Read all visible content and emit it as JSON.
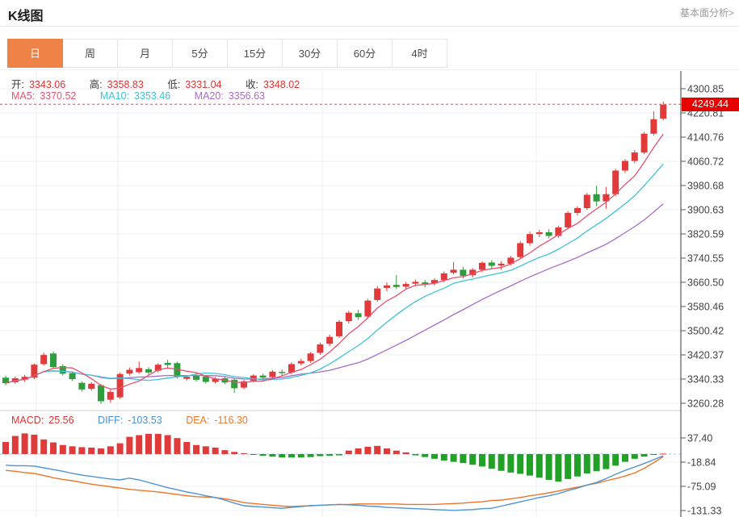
{
  "header": {
    "title": "K线图",
    "analysis_link": "基本面分析>"
  },
  "tabs": [
    {
      "id": "day",
      "label": "日",
      "active": true
    },
    {
      "id": "week",
      "label": "周",
      "active": false
    },
    {
      "id": "month",
      "label": "月",
      "active": false
    },
    {
      "id": "5min",
      "label": "5分",
      "active": false
    },
    {
      "id": "15min",
      "label": "15分",
      "active": false
    },
    {
      "id": "30min",
      "label": "30分",
      "active": false
    },
    {
      "id": "60min",
      "label": "60分",
      "active": false
    },
    {
      "id": "4hour",
      "label": "4时",
      "active": false
    }
  ],
  "readout": {
    "open_label": "开:",
    "open": "3343.06",
    "high_label": "高:",
    "high": "3358.83",
    "low_label": "低:",
    "low": "3331.04",
    "close_label": "收:",
    "close": "3348.02",
    "ma5_label": "MA5:",
    "ma5": "3370.52",
    "ma10_label": "MA10:",
    "ma10": "3353.46",
    "ma20_label": "MA20:",
    "ma20": "3356.63"
  },
  "macd_readout": {
    "macd_label": "MACD:",
    "macd": "25.56",
    "diff_label": "DIFF:",
    "diff": "-103.53",
    "dea_label": "DEA:",
    "dea": "-116.30"
  },
  "price_badge": {
    "value": "4249.44"
  },
  "colors": {
    "up": "#e03a3a",
    "down": "#2e9e3c",
    "ma5": "#e8506e",
    "ma10": "#3fc3d8",
    "ma20": "#a96bc8",
    "diff_line": "#4f94d4",
    "dea_line": "#ee7528",
    "hist_up": "#e03a3a",
    "hist_down": "#21a126",
    "last_price_dash": "#e34d4d",
    "zero_dash": "#9fd6da",
    "grid": "#eef1f5",
    "vgrid": "#e9edf2",
    "axis": "#58595b",
    "axis_text": "#404244",
    "badge_bg": "#e60000",
    "active_tab": "#ef8246",
    "panel_divider": "#cfcfcf"
  },
  "chart_data": {
    "type": "candlestick",
    "title": "K线图 (daily K-line with MA5/MA10/MA20 overlays and MACD sub-chart)",
    "y_axis_labels": [
      "4300.85",
      "4220.81",
      "4140.76",
      "4060.72",
      "3980.68",
      "3900.63",
      "3820.59",
      "3740.55",
      "3660.50",
      "3580.46",
      "3500.42",
      "3420.37",
      "3340.33",
      "3260.28"
    ],
    "y_range": [
      3260.28,
      4300.85
    ],
    "last_price": 4249.44,
    "overlays": [
      "MA5",
      "MA10",
      "MA20"
    ],
    "legend_position": "top-left",
    "grid": true,
    "candles": [
      [
        3345,
        3352,
        3320,
        3327
      ],
      [
        3330,
        3349,
        3325,
        3343
      ],
      [
        3338,
        3354,
        3332,
        3348
      ],
      [
        3345,
        3392,
        3340,
        3388
      ],
      [
        3390,
        3428,
        3385,
        3420
      ],
      [
        3425,
        3432,
        3375,
        3380
      ],
      [
        3383,
        3390,
        3352,
        3358
      ],
      [
        3360,
        3366,
        3334,
        3340
      ],
      [
        3328,
        3333,
        3299,
        3306
      ],
      [
        3308,
        3330,
        3302,
        3325
      ],
      [
        3320,
        3324,
        3259,
        3267
      ],
      [
        3272,
        3305,
        3262,
        3298
      ],
      [
        3280,
        3362,
        3275,
        3357
      ],
      [
        3359,
        3379,
        3352,
        3371
      ],
      [
        3363,
        3398,
        3358,
        3377
      ],
      [
        3373,
        3380,
        3355,
        3362
      ],
      [
        3368,
        3393,
        3362,
        3388
      ],
      [
        3394,
        3404,
        3377,
        3387
      ],
      [
        3393,
        3398,
        3342,
        3348
      ],
      [
        3341,
        3353,
        3335,
        3348
      ],
      [
        3352,
        3357,
        3332,
        3338
      ],
      [
        3349,
        3354,
        3325,
        3331
      ],
      [
        3331,
        3347,
        3326,
        3341
      ],
      [
        3343,
        3349,
        3323,
        3329
      ],
      [
        3338,
        3342,
        3295,
        3310
      ],
      [
        3312,
        3338,
        3306,
        3333
      ],
      [
        3335,
        3357,
        3329,
        3352
      ],
      [
        3352,
        3358,
        3338,
        3345
      ],
      [
        3347,
        3370,
        3342,
        3365
      ],
      [
        3364,
        3372,
        3350,
        3360
      ],
      [
        3362,
        3396,
        3356,
        3390
      ],
      [
        3392,
        3408,
        3386,
        3400
      ],
      [
        3400,
        3430,
        3394,
        3425
      ],
      [
        3427,
        3461,
        3421,
        3455
      ],
      [
        3457,
        3487,
        3450,
        3480
      ],
      [
        3482,
        3536,
        3476,
        3530
      ],
      [
        3532,
        3566,
        3524,
        3560
      ],
      [
        3558,
        3570,
        3536,
        3545
      ],
      [
        3547,
        3606,
        3540,
        3600
      ],
      [
        3602,
        3648,
        3596,
        3640
      ],
      [
        3642,
        3660,
        3630,
        3650
      ],
      [
        3652,
        3684,
        3638,
        3645
      ],
      [
        3646,
        3662,
        3638,
        3655
      ],
      [
        3656,
        3670,
        3648,
        3662
      ],
      [
        3660,
        3668,
        3644,
        3655
      ],
      [
        3657,
        3674,
        3650,
        3668
      ],
      [
        3668,
        3696,
        3660,
        3690
      ],
      [
        3692,
        3728,
        3686,
        3702
      ],
      [
        3702,
        3712,
        3674,
        3682
      ],
      [
        3684,
        3708,
        3676,
        3702
      ],
      [
        3702,
        3730,
        3694,
        3725
      ],
      [
        3726,
        3734,
        3706,
        3715
      ],
      [
        3716,
        3730,
        3702,
        3722
      ],
      [
        3722,
        3748,
        3716,
        3742
      ],
      [
        3744,
        3796,
        3738,
        3790
      ],
      [
        3790,
        3828,
        3782,
        3820
      ],
      [
        3820,
        3834,
        3810,
        3826
      ],
      [
        3826,
        3836,
        3806,
        3814
      ],
      [
        3814,
        3848,
        3808,
        3842
      ],
      [
        3842,
        3896,
        3836,
        3890
      ],
      [
        3890,
        3912,
        3882,
        3906
      ],
      [
        3906,
        3956,
        3900,
        3950
      ],
      [
        3952,
        3980,
        3912,
        3928
      ],
      [
        3928,
        3976,
        3904,
        3952
      ],
      [
        3952,
        4036,
        3946,
        4030
      ],
      [
        4030,
        4068,
        4022,
        4062
      ],
      [
        4062,
        4098,
        4054,
        4090
      ],
      [
        4090,
        4158,
        4084,
        4152
      ],
      [
        4152,
        4226,
        4146,
        4200
      ],
      [
        4202,
        4258,
        4196,
        4248
      ]
    ],
    "macd": {
      "y_axis_labels": [
        "37.40",
        "-18.84",
        "-75.09",
        "-131.33"
      ],
      "y_range": [
        -131.33,
        37.4
      ],
      "histogram": [
        28,
        42,
        48,
        45,
        34,
        27,
        21,
        18,
        16,
        15,
        13,
        18,
        25,
        40,
        44,
        47,
        47,
        44,
        37,
        28,
        21,
        18,
        15,
        9,
        5,
        2,
        -2,
        -4,
        -6,
        -8,
        -8,
        -8,
        -7,
        -5,
        -4,
        -3,
        8,
        13,
        17,
        19,
        13,
        8,
        4,
        -3,
        -7,
        -11,
        -15,
        -18,
        -21,
        -25,
        -29,
        -34,
        -39,
        -43,
        -46,
        -50,
        -55,
        -60,
        -64,
        -58,
        -52,
        -45,
        -40,
        -35,
        -27,
        -18,
        -11,
        -6,
        -2,
        1
      ],
      "diff": [
        -26,
        -27,
        -27,
        -28,
        -32,
        -36,
        -40,
        -45,
        -49,
        -52,
        -55,
        -58,
        -60,
        -56,
        -60,
        -66,
        -72,
        -78,
        -83,
        -88,
        -92,
        -97,
        -101,
        -107,
        -114,
        -120,
        -122,
        -123,
        -125,
        -126,
        -124,
        -122,
        -120,
        -119,
        -118,
        -117,
        -118,
        -119,
        -121,
        -122,
        -124,
        -125,
        -126,
        -127,
        -128,
        -129,
        -130,
        -131,
        -130,
        -129,
        -127,
        -126,
        -121,
        -116,
        -111,
        -106,
        -101,
        -97,
        -92,
        -85,
        -79,
        -72,
        -66,
        -57,
        -47,
        -38,
        -30,
        -22,
        -13,
        -4
      ],
      "dea": [
        -38,
        -40,
        -43,
        -45,
        -50,
        -55,
        -59,
        -62,
        -66,
        -70,
        -73,
        -76,
        -79,
        -82,
        -84,
        -86,
        -88,
        -91,
        -94,
        -97,
        -99,
        -100,
        -101,
        -104,
        -108,
        -113,
        -115,
        -117,
        -119,
        -121,
        -122,
        -121,
        -120,
        -119,
        -118,
        -117,
        -117,
        -116,
        -116,
        -116,
        -116,
        -116,
        -117,
        -117,
        -117,
        -117,
        -116,
        -115,
        -114,
        -112,
        -111,
        -108,
        -107,
        -104,
        -101,
        -97,
        -94,
        -90,
        -86,
        -81,
        -77,
        -72,
        -68,
        -62,
        -57,
        -51,
        -44,
        -33,
        -20,
        -6
      ]
    }
  }
}
